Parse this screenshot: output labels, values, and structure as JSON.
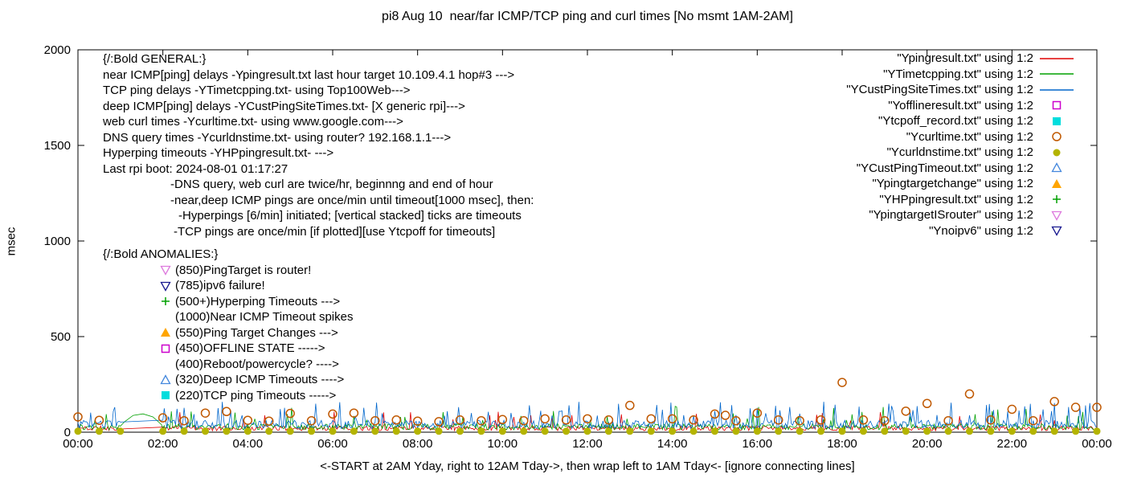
{
  "chart_data": {
    "type": "line",
    "title": "pi8 Aug 10  near/far ICMP/TCP ping and curl times [No msmt 1AM-2AM]",
    "xlabel": "<-START at 2AM Yday, right to 12AM Tday->, then wrap left to 1AM Tday<- [ignore connecting lines]",
    "ylabel": "msec",
    "ylim": [
      0,
      2000
    ],
    "x_range_minutes": [
      0,
      1440
    ],
    "y_ticks": [
      0,
      500,
      1000,
      1500,
      2000
    ],
    "x_ticks": [
      "00:00",
      "02:00",
      "04:00",
      "06:00",
      "08:00",
      "10:00",
      "12:00",
      "14:00",
      "16:00",
      "18:00",
      "20:00",
      "22:00",
      "00:00"
    ],
    "grid": false,
    "legend_position": "top-right",
    "no_measurement": "1AM-2AM",
    "legend": [
      {
        "label": "\"Ypingresult.txt\" using 1:2",
        "marker": "line",
        "color": "#e00000"
      },
      {
        "label": "\"YTimetcpping.txt\" using 1:2",
        "marker": "line",
        "color": "#00a000"
      },
      {
        "label": "\"YCustPingSiteTimes.txt\" using 1:2",
        "marker": "line",
        "color": "#0066cc"
      },
      {
        "label": "\"Yofflineresult.txt\" using 1:2",
        "marker": "open-square",
        "color": "#cc00cc"
      },
      {
        "label": "\"Ytcpoff_record.txt\" using 1:2",
        "marker": "filled-square",
        "color": "#00dddd"
      },
      {
        "label": "\"Ycurltime.txt\" using 1:2",
        "marker": "open-circle",
        "color": "#c05800"
      },
      {
        "label": "\"Ycurldnstime.txt\" using 1:2",
        "marker": "filled-circle",
        "color": "#b4b400"
      },
      {
        "label": "\"YCustPingTimeout.txt\" using 1:2",
        "marker": "open-triangle-up",
        "color": "#4488dd"
      },
      {
        "label": "\"Ypingtargetchange\" using 1:2",
        "marker": "filled-triangle-up",
        "color": "#ffa500"
      },
      {
        "label": "\"YHPpingresult.txt\" using 1:2",
        "marker": "plus",
        "color": "#00a000"
      },
      {
        "label": "\"YpingtargetISrouter\" using 1:2",
        "marker": "open-triangle-down",
        "color": "#dd7add"
      },
      {
        "label": "\"Ynoipv6\" using 1:2",
        "marker": "open-triangle-down",
        "color": "#191990"
      }
    ],
    "line_series": [
      {
        "name": "Ypingresult.txt",
        "desc": "near ICMP ping delays (msec)",
        "color": "#e00000",
        "base": 8,
        "noise": 25,
        "spike_chance": 0.04,
        "spike_min": 60,
        "spike_max": 110,
        "seed": 11
      },
      {
        "name": "YTimetcpping.txt",
        "desc": "TCP ping delays (msec)",
        "color": "#00a000",
        "base": 12,
        "noise": 32,
        "spike_chance": 0.05,
        "spike_min": 60,
        "spike_max": 140,
        "seed": 22,
        "bridge": [
          [
            55,
            15
          ],
          [
            66,
            55
          ],
          [
            78,
            88
          ],
          [
            92,
            96
          ],
          [
            106,
            80
          ],
          [
            118,
            40
          ],
          [
            122,
            18
          ]
        ]
      },
      {
        "name": "YCustPingSiteTimes.txt",
        "desc": "deep ICMP ping delays (msec)",
        "color": "#0066cc",
        "base": 18,
        "noise": 45,
        "spike_chance": 0.12,
        "spike_min": 80,
        "spike_max": 160,
        "seed": 33
      }
    ],
    "point_series": [
      {
        "name": "Ycurltime.txt",
        "desc": "web curl times twice per hour (msec)",
        "marker": "open-circle",
        "color": "#c05800",
        "data": [
          [
            0,
            80
          ],
          [
            30,
            62
          ],
          [
            120,
            75
          ],
          [
            150,
            60
          ],
          [
            180,
            100
          ],
          [
            210,
            108
          ],
          [
            240,
            62
          ],
          [
            270,
            58
          ],
          [
            300,
            98
          ],
          [
            330,
            60
          ],
          [
            360,
            95
          ],
          [
            390,
            100
          ],
          [
            420,
            60
          ],
          [
            450,
            64
          ],
          [
            480,
            58
          ],
          [
            510,
            55
          ],
          [
            540,
            64
          ],
          [
            570,
            60
          ],
          [
            600,
            66
          ],
          [
            630,
            60
          ],
          [
            660,
            70
          ],
          [
            690,
            64
          ],
          [
            720,
            70
          ],
          [
            750,
            64
          ],
          [
            780,
            140
          ],
          [
            810,
            70
          ],
          [
            840,
            70
          ],
          [
            870,
            64
          ],
          [
            900,
            95
          ],
          [
            915,
            88
          ],
          [
            930,
            60
          ],
          [
            960,
            100
          ],
          [
            990,
            64
          ],
          [
            1020,
            60
          ],
          [
            1050,
            64
          ],
          [
            1080,
            260
          ],
          [
            1110,
            64
          ],
          [
            1140,
            60
          ],
          [
            1170,
            110
          ],
          [
            1200,
            150
          ],
          [
            1230,
            60
          ],
          [
            1260,
            200
          ],
          [
            1290,
            64
          ],
          [
            1320,
            120
          ],
          [
            1350,
            60
          ],
          [
            1380,
            160
          ],
          [
            1410,
            130
          ],
          [
            1440,
            130
          ]
        ]
      },
      {
        "name": "Ycurldnstime.txt",
        "desc": "DNS query times twice per hour (msec)",
        "marker": "filled-circle",
        "color": "#b4b400",
        "y": 5,
        "minutes": [
          0,
          30,
          60,
          120,
          150,
          180,
          210,
          240,
          270,
          300,
          330,
          360,
          390,
          420,
          450,
          480,
          510,
          540,
          570,
          600,
          630,
          660,
          690,
          720,
          750,
          780,
          810,
          840,
          870,
          900,
          930,
          960,
          990,
          1020,
          1050,
          1080,
          1110,
          1140,
          1170,
          1200,
          1230,
          1260,
          1290,
          1320,
          1350,
          1380,
          1410,
          1440
        ]
      }
    ],
    "annotations": {
      "general": [
        "{/:Bold GENERAL:}",
        "near ICMP[ping] delays -Ypingresult.txt last hour target 10.109.4.1 hop#3 --->",
        "TCP ping delays -YTimetcpping.txt- using Top100Web--->",
        "deep ICMP[ping] delays -YCustPingSiteTimes.txt- [X generic rpi]--->",
        "web curl times -Ycurltime.txt- using www.google.com--->",
        "DNS query times -Ycurldnstime.txt- using router? 192.168.1.1--->",
        "Hyperping timeouts -YHPpingresult.txt- --->",
        "Last rpi boot: 2024-08-01 01:17:27"
      ],
      "notes": [
        {
          "text": "-DNS query, web curl are twice/hr, beginnng and end of hour",
          "indent": 84
        },
        {
          "text": "-near,deep ICMP pings are once/min until timeout[1000 msec], then:",
          "indent": 84
        },
        {
          "text": "-Hyperpings [6/min] initiated; [vertical stacked] ticks are timeouts",
          "indent": 94
        },
        {
          "text": "-TCP pings are once/min [if plotted][use Ytcpoff for timeouts]",
          "indent": 88
        }
      ],
      "anomalies_header": "{/:Bold ANOMALIES:}",
      "anomalies": [
        {
          "marker": "open-triangle-down",
          "color": "#dd7add",
          "text": "(850)PingTarget is router!"
        },
        {
          "marker": "open-triangle-down",
          "color": "#191990",
          "text": "(785)ipv6 failure!"
        },
        {
          "marker": "plus",
          "color": "#00a000",
          "text": "(500+)Hyperping Timeouts --->"
        },
        {
          "marker": null,
          "color": null,
          "text": "(1000)Near ICMP Timeout spikes"
        },
        {
          "marker": "filled-triangle-up",
          "color": "#ffa500",
          "text": "(550)Ping Target Changes --->"
        },
        {
          "marker": "open-square",
          "color": "#cc00cc",
          "text": "(450)OFFLINE STATE ----->"
        },
        {
          "marker": null,
          "color": null,
          "text": "(400)Reboot/powercycle? ---->"
        },
        {
          "marker": "open-triangle-up",
          "color": "#4488dd",
          "text": "(320)Deep ICMP Timeouts ---->"
        },
        {
          "marker": "filled-square",
          "color": "#00dddd",
          "text": "(220)TCP ping Timeouts ----->"
        }
      ]
    }
  }
}
